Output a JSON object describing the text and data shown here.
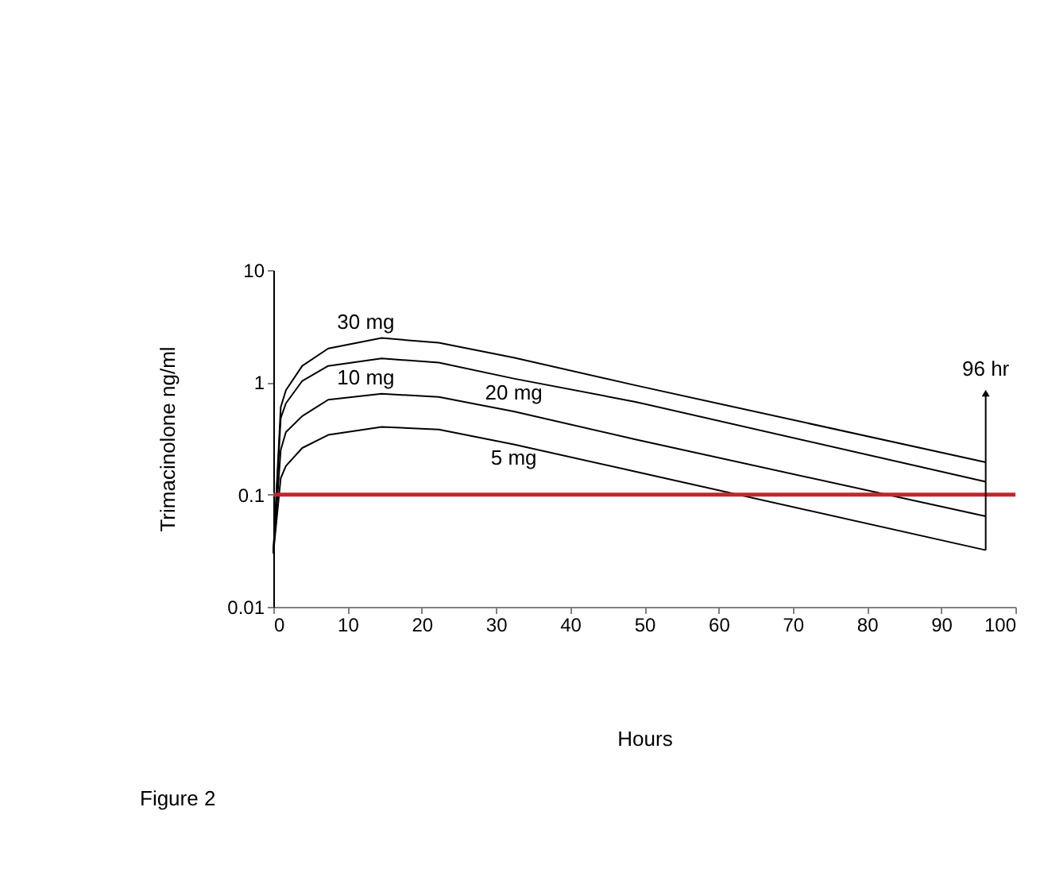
{
  "chart_data": {
    "type": "line",
    "xlabel": "Hours",
    "ylabel": "Trimacinolone ng/ml",
    "xlim": [
      0,
      100
    ],
    "xticks": [
      0,
      10,
      20,
      30,
      40,
      50,
      60,
      70,
      80,
      90,
      100
    ],
    "ylim": [
      0.01,
      10
    ],
    "yticks": [
      0.01,
      0.1,
      1,
      10
    ],
    "log": "y",
    "grid": false,
    "marker": "none",
    "line_style": "solid",
    "x": [
      0,
      1,
      1.7,
      3.9,
      7.4,
      14.6,
      22.3,
      32.4,
      48.8,
      96
    ],
    "series": [
      {
        "name": "30 mg",
        "color": "#000000",
        "values": [
          0.03,
          0.6,
          0.85,
          1.4,
          2.0,
          2.48,
          2.25,
          1.66,
          0.94,
          0.194
        ]
      },
      {
        "name": "20 mg",
        "color": "#000000",
        "values": [
          0.03,
          0.48,
          0.65,
          1.03,
          1.4,
          1.63,
          1.5,
          1.08,
          0.67,
          0.13
        ]
      },
      {
        "name": "10 mg",
        "color": "#000000",
        "values": [
          0.03,
          0.25,
          0.36,
          0.5,
          0.7,
          0.79,
          0.74,
          0.55,
          0.31,
          0.064
        ]
      },
      {
        "name": "5 mg",
        "color": "#000000",
        "values": [
          0.03,
          0.14,
          0.18,
          0.26,
          0.34,
          0.4,
          0.38,
          0.28,
          0.16,
          0.032
        ]
      }
    ],
    "ref_lines": [
      {
        "axis": "y",
        "value": 0.1,
        "color": "#c0282d"
      }
    ],
    "annotations": [
      {
        "text": "96 hr",
        "x": 96,
        "y": 0.8
      },
      "Figure 2"
    ]
  }
}
